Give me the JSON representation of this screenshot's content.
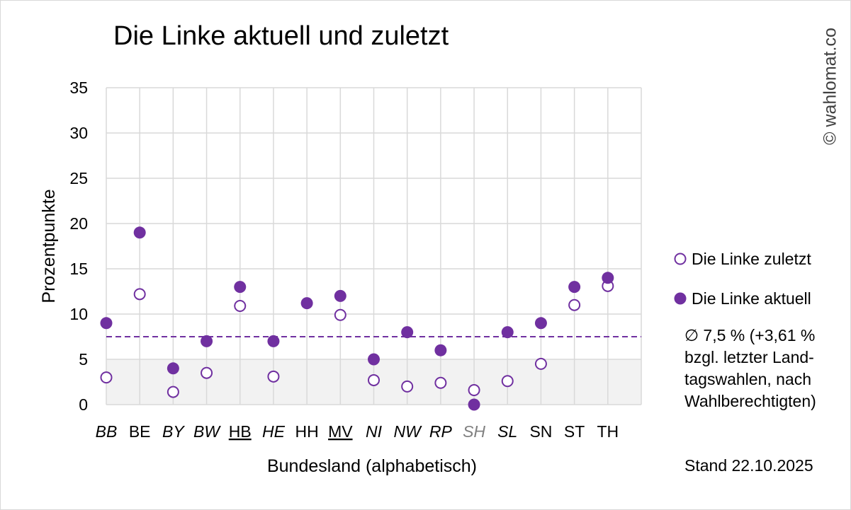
{
  "title": "Die Linke aktuell und zuletzt",
  "watermark": "© wahlomat.co",
  "legend": [
    {
      "label": "Die Linke zuletzt",
      "style": "open"
    },
    {
      "label": "Die Linke aktuell",
      "style": "filled"
    }
  ],
  "note_lines": [
    "∅ 7,5 % (+3,61 %",
    "bzgl. letzter Land-",
    "tagswahlen, nach",
    "Wahlberechtigten)"
  ],
  "stand": "Stand 22.10.2025",
  "colors": {
    "accent": "#7030A0",
    "grid": "#d9d9d9",
    "band": "#f2f2f2",
    "muted_label": "#808080",
    "watermark": "#404040"
  },
  "chart_data": {
    "type": "scatter",
    "title": "Die Linke aktuell und zuletzt",
    "xlabel": "Bundesland (alphabetisch)",
    "ylabel": "Prozentpunkte",
    "ylim": [
      0,
      35
    ],
    "yticks": [
      0,
      5,
      10,
      15,
      20,
      25,
      30,
      35
    ],
    "grid": true,
    "legend_position": "right",
    "categories": [
      "BB",
      "BE",
      "BY",
      "BW",
      "HB",
      "HE",
      "HH",
      "MV",
      "NI",
      "NW",
      "RP",
      "SH",
      "SL",
      "SN",
      "ST",
      "TH"
    ],
    "category_styles": [
      {
        "italic": true
      },
      {},
      {
        "italic": true
      },
      {
        "italic": true
      },
      {
        "underline": true
      },
      {
        "italic": true
      },
      {},
      {
        "underline": true
      },
      {
        "italic": true
      },
      {
        "italic": true
      },
      {
        "italic": true
      },
      {
        "italic": true,
        "color": "#808080"
      },
      {
        "italic": true
      },
      {},
      {},
      {}
    ],
    "series": [
      {
        "name": "Die Linke zuletzt",
        "marker": "open",
        "values": [
          3.0,
          12.2,
          1.4,
          3.5,
          10.9,
          3.1,
          null,
          9.9,
          2.7,
          2.0,
          2.4,
          1.6,
          2.6,
          4.5,
          11.0,
          13.1
        ]
      },
      {
        "name": "Die Linke aktuell",
        "marker": "filled",
        "values": [
          9.0,
          19.0,
          4.0,
          7.0,
          13.0,
          7.0,
          11.2,
          12.0,
          5.0,
          8.0,
          6.0,
          0.0,
          8.0,
          9.0,
          13.0,
          14.0
        ]
      }
    ],
    "reference_line": {
      "value": 7.5,
      "style": "dashed"
    },
    "shaded_band": [
      0,
      5
    ]
  }
}
